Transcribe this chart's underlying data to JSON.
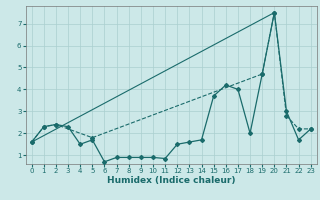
{
  "xlabel": "Humidex (Indice chaleur)",
  "xlim": [
    -0.5,
    23.5
  ],
  "ylim": [
    0.6,
    7.8
  ],
  "bg_color": "#cce8e8",
  "grid_color": "#aacfcf",
  "line_color": "#1a6b6b",
  "xticks": [
    0,
    1,
    2,
    3,
    4,
    5,
    6,
    7,
    8,
    9,
    10,
    11,
    12,
    13,
    14,
    15,
    16,
    17,
    18,
    19,
    20,
    21,
    22,
    23
  ],
  "yticks": [
    1,
    2,
    3,
    4,
    5,
    6,
    7
  ],
  "line1_x": [
    0,
    1,
    2,
    3,
    4,
    5,
    6,
    7,
    8,
    9,
    10,
    11,
    12,
    13,
    14,
    15,
    16,
    17,
    18,
    19,
    20,
    21,
    22,
    23
  ],
  "line1_y": [
    1.6,
    2.3,
    2.4,
    2.3,
    1.5,
    1.7,
    0.7,
    0.9,
    0.9,
    0.9,
    0.9,
    0.85,
    1.5,
    1.6,
    1.7,
    3.7,
    4.2,
    4.0,
    2.0,
    4.7,
    7.5,
    3.0,
    1.7,
    2.2
  ],
  "line2_x": [
    0,
    1,
    2,
    5,
    19,
    20,
    21,
    22,
    23
  ],
  "line2_y": [
    1.6,
    2.3,
    2.4,
    1.8,
    4.7,
    7.5,
    2.8,
    2.2,
    2.2
  ],
  "line3_x": [
    0,
    20
  ],
  "line3_y": [
    1.6,
    7.5
  ]
}
